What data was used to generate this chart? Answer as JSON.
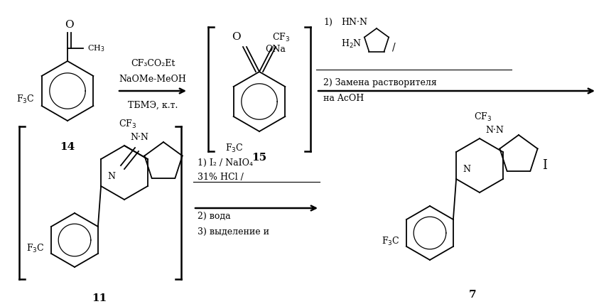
{
  "background_color": "#ffffff",
  "figsize": [
    8.67,
    4.28
  ],
  "dpi": 100,
  "reagent1_line1": "CF₃CO₂Et",
  "reagent1_line2": "NaOMe-MeOH",
  "reagent1_line3": "ТБМЭ, к.т.",
  "reagent2_line1": "1)  HN",
  "reagent2_line2": "H₂N",
  "reagent2_line3": "2) Замена растворителя",
  "reagent2_line4": "на AcOH",
  "reagent3_line1": "1) I₂ / NaIO₄",
  "reagent3_line2": "31% HCl /",
  "reagent3_line3": "2) вода",
  "reagent3_line4": "3) выделение и"
}
